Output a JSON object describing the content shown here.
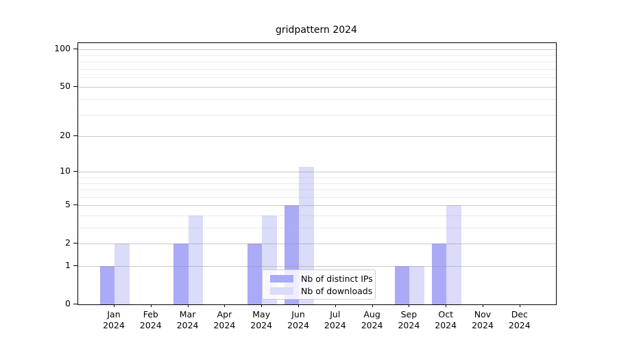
{
  "chart_data": {
    "type": "bar",
    "title": "gridpattern 2024",
    "categories": [
      "Jan",
      "Feb",
      "Mar",
      "Apr",
      "May",
      "Jun",
      "Jul",
      "Aug",
      "Sep",
      "Oct",
      "Nov",
      "Dec"
    ],
    "year_label": "2024",
    "series": [
      {
        "name": "Nb of distinct IPs",
        "color": "#aaaaf7",
        "values": [
          1,
          0,
          2,
          0,
          2,
          5,
          0,
          0,
          1,
          2,
          0,
          0
        ]
      },
      {
        "name": "Nb of downloads",
        "color": "#dbdbfa",
        "values": [
          2,
          0,
          4,
          0,
          4,
          11,
          0,
          0,
          1,
          5,
          0,
          0
        ]
      }
    ],
    "y_axis": {
      "scale": "log(1+x)",
      "major_ticks": [
        0,
        1,
        2,
        5,
        10,
        20,
        50,
        100
      ],
      "minor_ticks": [
        3,
        4,
        6,
        7,
        8,
        9,
        30,
        40,
        60,
        70,
        80,
        90
      ],
      "ylim_top": 120
    },
    "legend": {
      "position": "lower center",
      "entries": [
        "Nb of distinct IPs",
        "Nb of downloads"
      ]
    },
    "grid": true
  }
}
